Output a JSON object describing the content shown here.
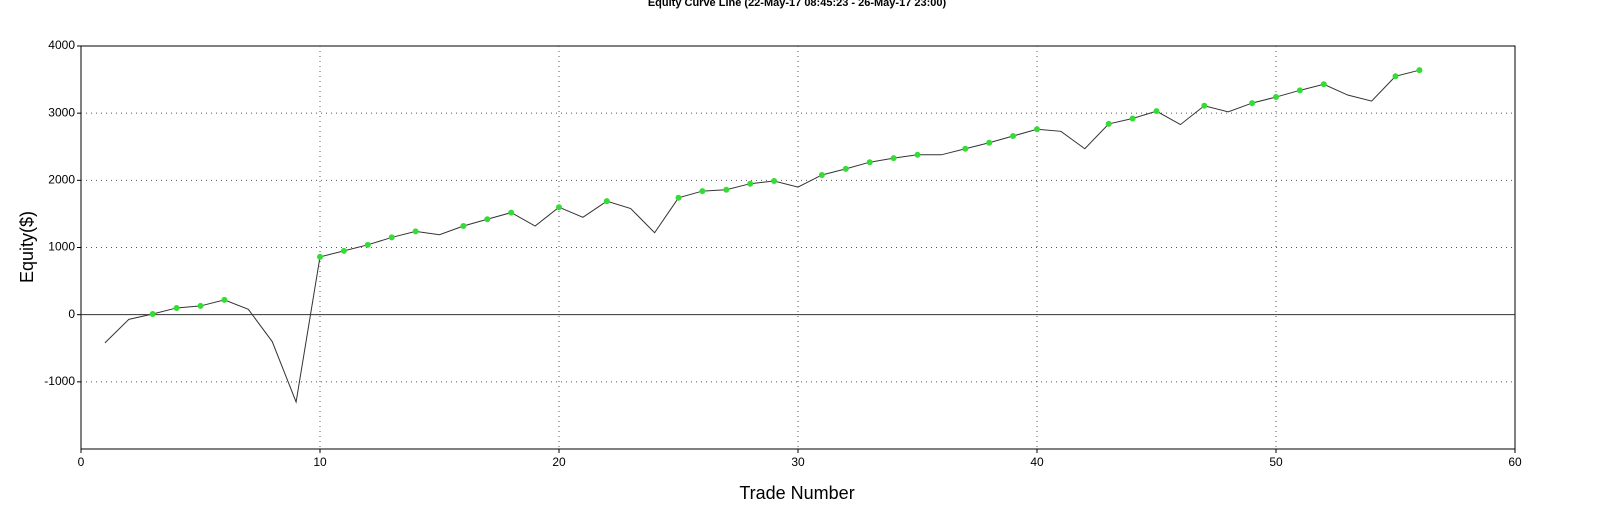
{
  "chart_data": {
    "type": "line",
    "title": "Equity Curve Line (22-May-17 08:45:23 - 26-May-17 23:00)",
    "x_label": "Trade Number",
    "y_label": "Equity($)",
    "x": [
      1,
      2,
      3,
      4,
      5,
      6,
      7,
      8,
      9,
      10,
      11,
      12,
      13,
      14,
      15,
      16,
      17,
      18,
      19,
      20,
      21,
      22,
      23,
      24,
      25,
      26,
      27,
      28,
      29,
      30,
      31,
      32,
      33,
      34,
      35,
      36,
      37,
      38,
      39,
      40,
      41,
      42,
      43,
      44,
      45,
      46,
      47,
      48,
      49,
      50,
      51,
      52,
      53,
      54,
      55,
      56
    ],
    "values": [
      -420,
      -70,
      10,
      100,
      130,
      220,
      80,
      -400,
      -1300,
      860,
      950,
      1040,
      1150,
      1240,
      1190,
      1320,
      1420,
      1520,
      1320,
      1600,
      1450,
      1690,
      1580,
      1220,
      1740,
      1840,
      1860,
      1950,
      1990,
      1900,
      2080,
      2170,
      2270,
      2330,
      2380,
      2380,
      2470,
      2560,
      2660,
      2760,
      2730,
      2470,
      2840,
      2920,
      3030,
      2830,
      3110,
      3020,
      3150,
      3240,
      3340,
      3430,
      3270,
      3180,
      3550,
      3640
    ],
    "color": "#333333",
    "marker_color": "#33dd33",
    "xlim": [
      0,
      60
    ],
    "xticks": [
      0,
      10,
      20,
      30,
      40,
      50,
      60
    ],
    "ylim": [
      -2000,
      4000
    ],
    "yticks": [
      -1000,
      0,
      1000,
      2000,
      3000,
      4000
    ],
    "grid": true
  }
}
